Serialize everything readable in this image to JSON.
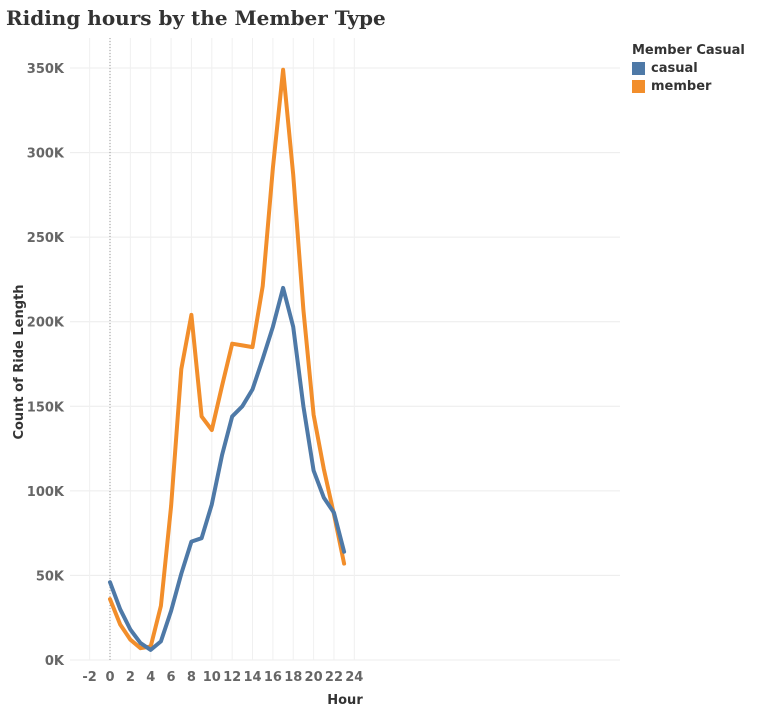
{
  "chart_data": {
    "type": "line",
    "title": "Riding hours by the Member Type",
    "xlabel": "Hour",
    "ylabel": "Count of Ride Length",
    "xlim": [
      -3,
      25
    ],
    "ylim": [
      0,
      350000
    ],
    "x_ticks": [
      -2,
      0,
      2,
      4,
      6,
      8,
      10,
      12,
      14,
      16,
      18,
      20,
      22,
      24
    ],
    "x_tick_labels": [
      "-2",
      "0",
      "2",
      "4",
      "6",
      "8",
      "10",
      "12",
      "14",
      "16",
      "18",
      "20",
      "22",
      "24"
    ],
    "y_ticks": [
      0,
      50000,
      100000,
      150000,
      200000,
      250000,
      300000,
      350000
    ],
    "y_tick_labels": [
      "0K",
      "50K",
      "100K",
      "150K",
      "200K",
      "250K",
      "300K",
      "350K"
    ],
    "grid": true,
    "legend_title": "Member Casual",
    "legend_position": "top-right",
    "x": [
      0,
      1,
      2,
      3,
      4,
      5,
      6,
      7,
      8,
      9,
      10,
      11,
      12,
      13,
      14,
      15,
      16,
      17,
      18,
      19,
      20,
      21,
      22,
      23
    ],
    "series": [
      {
        "name": "casual",
        "color": "#4e79a7",
        "values": [
          46000,
          30000,
          18000,
          10000,
          6000,
          11000,
          29000,
          51000,
          70000,
          72000,
          92000,
          121000,
          144000,
          150000,
          160000,
          178000,
          197000,
          220000,
          197000,
          150000,
          112000,
          96000,
          87000,
          64000
        ]
      },
      {
        "name": "member",
        "color": "#f28e2b",
        "values": [
          36000,
          21000,
          12000,
          7000,
          8000,
          32000,
          91000,
          172000,
          204000,
          144000,
          136000,
          162000,
          187000,
          186000,
          185000,
          221000,
          291000,
          349000,
          287000,
          207000,
          145000,
          113000,
          86000,
          57000
        ]
      }
    ]
  }
}
